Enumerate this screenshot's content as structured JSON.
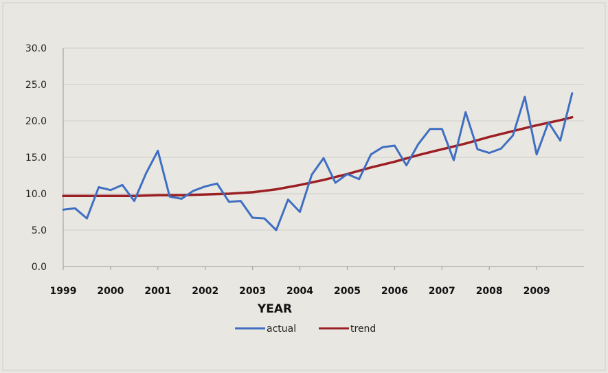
{
  "chart_data": {
    "type": "line",
    "title": "",
    "xlabel": "YEAR",
    "ylabel": "",
    "ylim": [
      0,
      30
    ],
    "yticks": [
      "0.0",
      "5.0",
      "10.0",
      "15.0",
      "20.0",
      "25.0",
      "30.0"
    ],
    "xticks": [
      "1999",
      "2000",
      "2001",
      "2002",
      "2003",
      "2004",
      "2005",
      "2006",
      "2007",
      "2008",
      "2009"
    ],
    "xlim": [
      1999,
      2010
    ],
    "grid": true,
    "legend_position": "bottom",
    "series": [
      {
        "name": "actual",
        "color": "#3f6fc2",
        "x": [
          1999.0,
          1999.25,
          1999.5,
          1999.75,
          2000.0,
          2000.25,
          2000.5,
          2000.75,
          2001.0,
          2001.25,
          2001.5,
          2001.75,
          2002.0,
          2002.25,
          2002.5,
          2002.75,
          2003.0,
          2003.25,
          2003.5,
          2003.75,
          2004.0,
          2004.25,
          2004.5,
          2004.75,
          2005.0,
          2005.25,
          2005.5,
          2005.75,
          2006.0,
          2006.25,
          2006.5,
          2006.75,
          2007.0,
          2007.25,
          2007.5,
          2007.75,
          2008.0,
          2008.25,
          2008.5,
          2008.75,
          2009.0,
          2009.25,
          2009.5,
          2009.75
        ],
        "values": [
          7.8,
          8.0,
          6.6,
          10.9,
          10.5,
          11.2,
          9.0,
          12.8,
          15.9,
          9.6,
          9.3,
          10.4,
          11.0,
          11.4,
          8.9,
          9.0,
          6.7,
          6.6,
          5.0,
          9.2,
          7.5,
          12.6,
          14.9,
          11.5,
          12.7,
          12.0,
          15.4,
          16.4,
          16.6,
          13.9,
          16.8,
          18.9,
          18.9,
          14.6,
          21.2,
          16.1,
          15.6,
          16.2,
          18.0,
          23.3,
          15.4,
          19.8,
          17.3,
          23.8
        ]
      },
      {
        "name": "trend",
        "color": "#9b1f24",
        "x": [
          1999.0,
          1999.5,
          2000.0,
          2000.5,
          2001.0,
          2001.5,
          2002.0,
          2002.5,
          2003.0,
          2003.5,
          2004.0,
          2004.5,
          2005.0,
          2005.5,
          2006.0,
          2006.5,
          2007.0,
          2007.5,
          2008.0,
          2008.5,
          2009.0,
          2009.5,
          2009.75
        ],
        "values": [
          9.7,
          9.7,
          9.7,
          9.7,
          9.8,
          9.8,
          9.9,
          10.0,
          10.2,
          10.6,
          11.2,
          11.9,
          12.7,
          13.6,
          14.4,
          15.3,
          16.1,
          16.9,
          17.8,
          18.6,
          19.4,
          20.1,
          20.5
        ]
      }
    ]
  }
}
